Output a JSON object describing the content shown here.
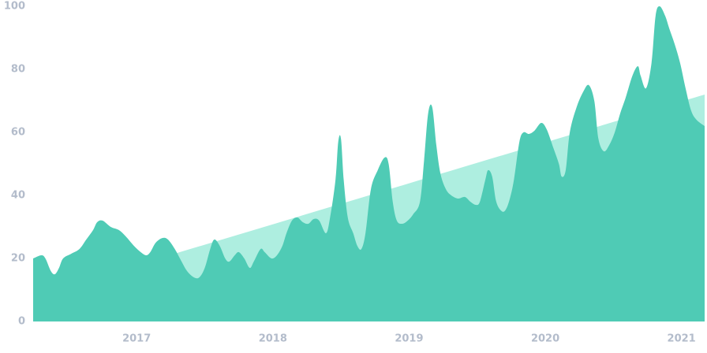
{
  "chart_data": {
    "type": "area",
    "xlim": [
      2016.24,
      2021.17
    ],
    "xticks": [
      2017,
      2018,
      2019,
      2020,
      2021
    ],
    "ylim": [
      0,
      100
    ],
    "yticks": [
      0,
      20,
      40,
      60,
      80,
      100
    ],
    "grid": false,
    "series": [
      {
        "color": "#aeeee0",
        "x": [
          2016.24,
          2021.17
        ],
        "values": [
          8,
          72
        ]
      },
      {
        "color": "#4fcbb5",
        "x": [
          2016.24,
          2016.3,
          2016.33,
          2016.37,
          2016.4,
          2016.43,
          2016.46,
          2016.52,
          2016.58,
          2016.63,
          2016.68,
          2016.71,
          2016.75,
          2016.81,
          2016.87,
          2016.92,
          2016.98,
          2017.03,
          2017.07,
          2017.1,
          2017.14,
          2017.19,
          2017.23,
          2017.28,
          2017.33,
          2017.37,
          2017.42,
          2017.46,
          2017.5,
          2017.54,
          2017.57,
          2017.61,
          2017.65,
          2017.68,
          2017.72,
          2017.75,
          2017.79,
          2017.83,
          2017.86,
          2017.91,
          2017.94,
          2017.99,
          2018.03,
          2018.07,
          2018.1,
          2018.14,
          2018.18,
          2018.22,
          2018.26,
          2018.3,
          2018.34,
          2018.39,
          2018.42,
          2018.46,
          2018.48,
          2018.5,
          2018.52,
          2018.55,
          2018.59,
          2018.62,
          2018.65,
          2018.68,
          2018.72,
          2018.77,
          2018.82,
          2018.85,
          2018.88,
          2018.91,
          2018.95,
          2018.99,
          2019.03,
          2019.08,
          2019.11,
          2019.14,
          2019.17,
          2019.2,
          2019.23,
          2019.27,
          2019.31,
          2019.36,
          2019.41,
          2019.45,
          2019.49,
          2019.52,
          2019.56,
          2019.58,
          2019.61,
          2019.64,
          2019.68,
          2019.71,
          2019.74,
          2019.77,
          2019.81,
          2019.84,
          2019.88,
          2019.92,
          2019.97,
          2020.01,
          2020.06,
          2020.1,
          2020.12,
          2020.15,
          2020.18,
          2020.23,
          2020.28,
          2020.32,
          2020.36,
          2020.39,
          2020.43,
          2020.47,
          2020.51,
          2020.55,
          2020.59,
          2020.64,
          2020.68,
          2020.7,
          2020.74,
          2020.78,
          2020.81,
          2020.84,
          2020.88,
          2020.91,
          2020.95,
          2020.99,
          2021.03,
          2021.07,
          2021.11,
          2021.17
        ],
        "values": [
          20,
          21,
          20,
          16,
          15,
          17,
          20,
          21.5,
          23,
          26,
          29,
          31.5,
          32,
          30,
          29,
          27,
          24,
          22,
          21,
          22,
          25,
          26.5,
          26,
          23,
          19,
          16,
          14,
          14,
          17,
          23,
          26,
          24,
          20,
          19,
          21,
          22,
          20,
          17,
          19,
          23,
          22,
          20,
          21,
          24,
          28,
          32,
          33,
          31.5,
          31,
          32.5,
          32,
          28,
          33,
          45,
          57,
          58,
          45,
          33,
          28,
          24,
          23,
          28,
          42,
          48,
          52,
          50,
          38,
          32,
          31,
          32,
          34,
          38,
          51,
          66,
          68,
          56,
          47,
          42,
          40,
          39,
          39.5,
          38,
          37,
          38,
          45,
          48,
          46,
          38,
          35,
          35.5,
          39,
          45,
          57,
          60,
          59.5,
          60.5,
          63,
          61,
          55,
          50,
          46,
          48,
          60,
          68,
          73,
          75,
          70,
          58,
          54,
          56,
          60,
          66,
          71,
          78,
          81,
          78,
          74,
          82,
          97,
          100,
          97,
          93,
          88,
          82,
          74,
          67,
          64,
          62
        ]
      }
    ]
  }
}
